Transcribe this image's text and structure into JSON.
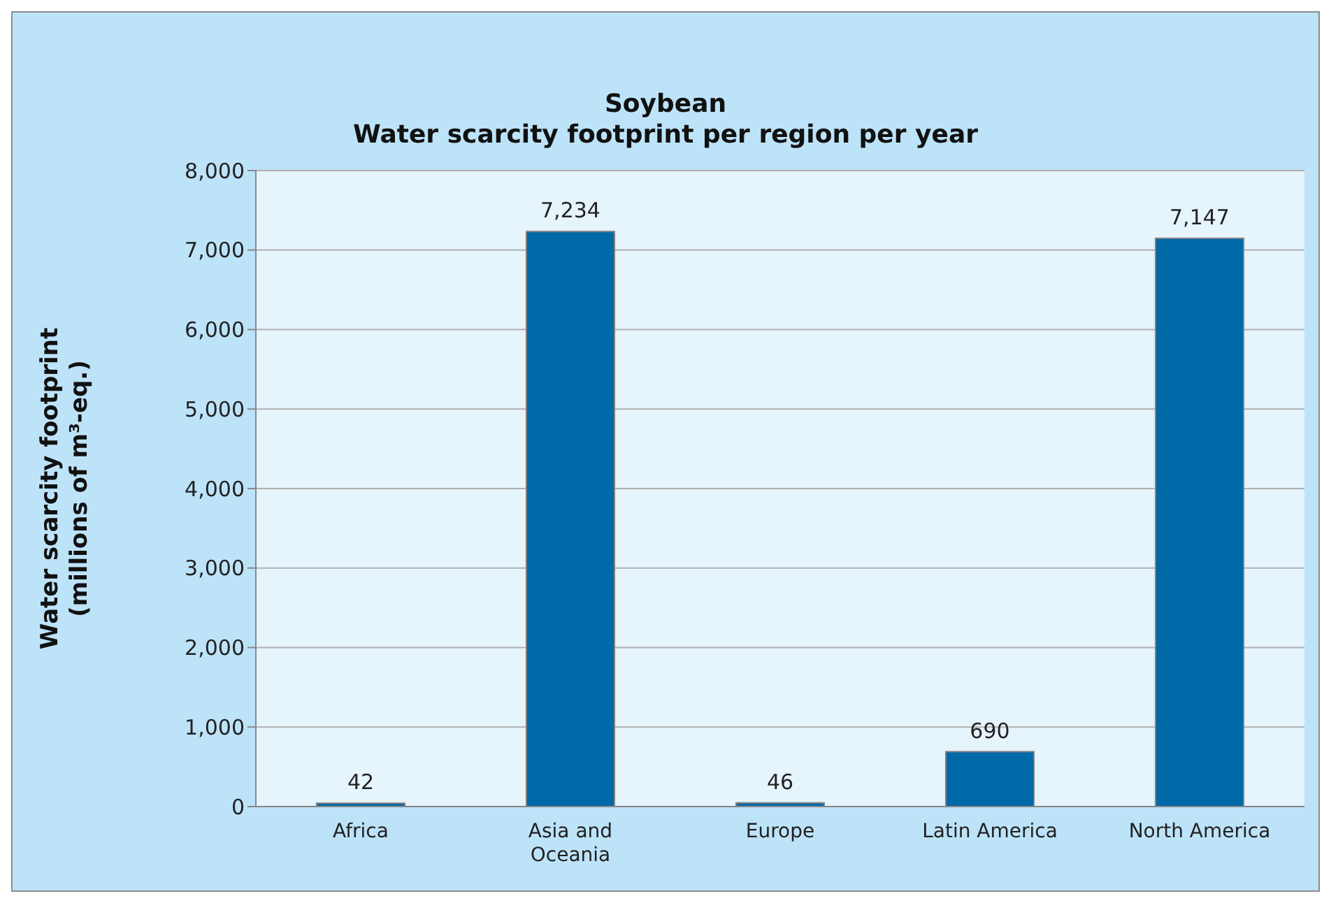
{
  "chart_data": {
    "type": "bar",
    "title": "Soybean",
    "subtitle": "Water scarcity footprint per region per year",
    "ylabel": "Water scarcity footprint (millions of m³-eq.)",
    "categories": [
      "Africa",
      "Asia and Oceania",
      "Europe",
      "Latin America",
      "North America"
    ],
    "values": [
      42,
      7234,
      46,
      690,
      7147
    ],
    "color": "#0069a8",
    "value_labels": [
      "42",
      "7,234",
      "46",
      "690",
      "7,147"
    ],
    "ylim": [
      0,
      8000
    ],
    "yticks": [
      0,
      {
        "value": 1000,
        "label": "1,000"
      },
      {
        "value": 2000,
        "label": "2,000"
      },
      {
        "value": 3000,
        "label": "3,000"
      },
      {
        "value": 4000,
        "label": "4,000"
      },
      {
        "value": 5000,
        "label": "5,000"
      },
      {
        "value": 6000,
        "label": "6,000"
      },
      {
        "value": 7000,
        "label": "7,000"
      },
      {
        "value": 8000,
        "label": "8,000"
      }
    ],
    "grid": "y"
  }
}
